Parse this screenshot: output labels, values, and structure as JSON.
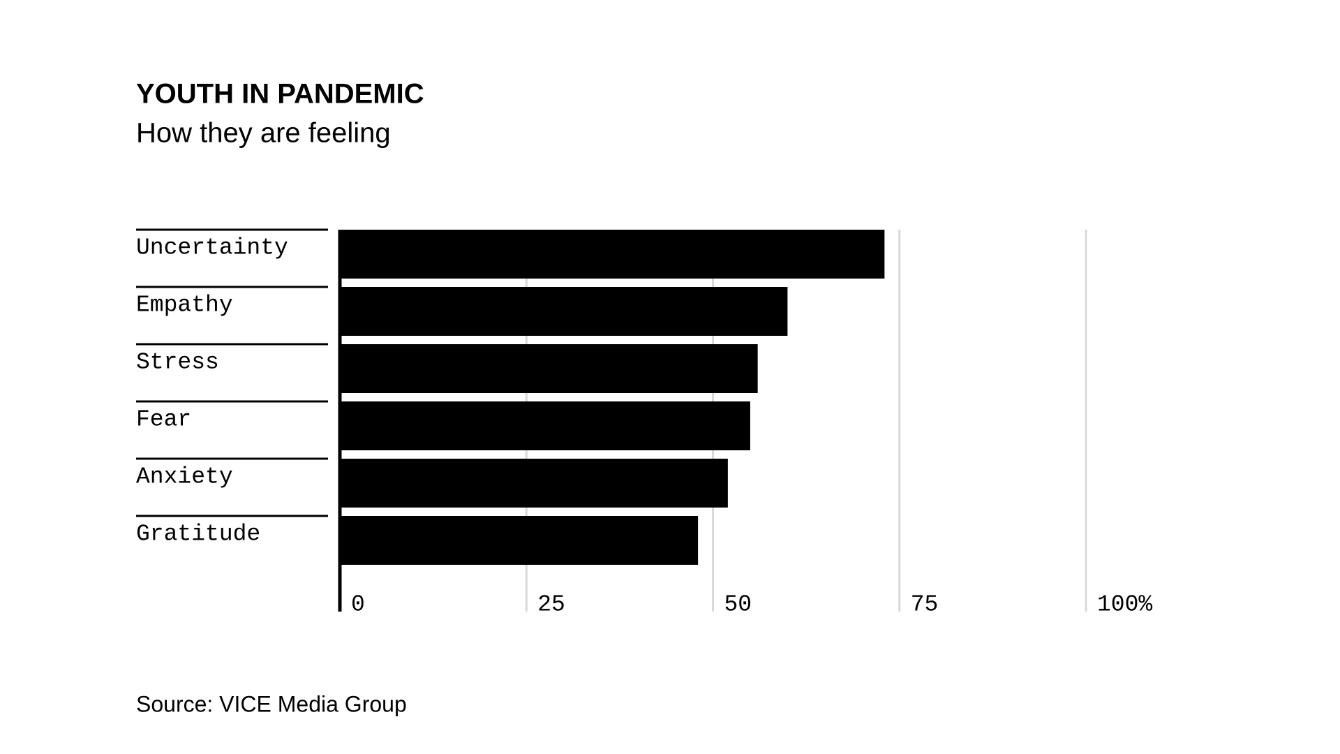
{
  "chart_data": {
    "type": "bar",
    "orientation": "horizontal",
    "title": "YOUTH IN PANDEMIC",
    "subtitle": "How they are feeling",
    "categories": [
      "Uncertainty",
      "Empathy",
      "Stress",
      "Fear",
      "Anxiety",
      "Gratitude"
    ],
    "values": [
      73,
      60,
      56,
      55,
      52,
      48
    ],
    "color": "#000000",
    "xlim": [
      0,
      100
    ],
    "xticks": [
      0,
      25,
      50,
      75,
      {
        "value": 100,
        "label": "100%"
      }
    ],
    "grid": true,
    "source": "Source: VICE Media Group"
  }
}
